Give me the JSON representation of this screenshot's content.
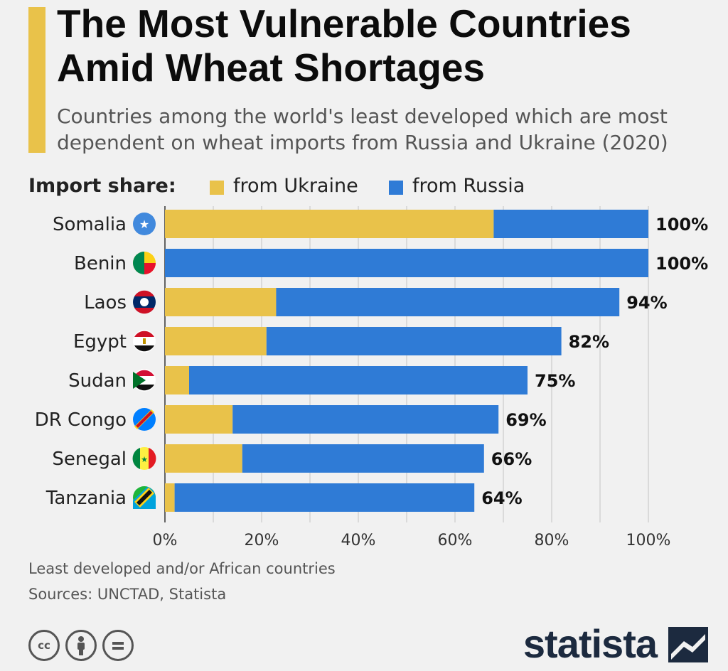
{
  "header": {
    "title": "The Most Vulnerable Countries Amid Wheat Shortages",
    "subtitle": "Countries among the world's least developed which are most dependent on wheat imports from Russia and Ukraine (2020)"
  },
  "legend": {
    "label": "Import share:",
    "items": [
      {
        "name": "from Ukraine",
        "color": "#e9c24a"
      },
      {
        "name": "from Russia",
        "color": "#2f7bd6"
      }
    ]
  },
  "chart_data": {
    "type": "bar",
    "orientation": "horizontal",
    "stacked": true,
    "categories": [
      "Somalia",
      "Benin",
      "Laos",
      "Egypt",
      "Sudan",
      "DR Congo",
      "Senegal",
      "Tanzania"
    ],
    "flags": [
      "somalia-flag-icon",
      "benin-flag-icon",
      "laos-flag-icon",
      "egypt-flag-icon",
      "sudan-flag-icon",
      "dr-congo-flag-icon",
      "senegal-flag-icon",
      "tanzania-flag-icon"
    ],
    "series": [
      {
        "name": "from Ukraine",
        "color": "#e9c24a",
        "values": [
          68,
          0,
          23,
          21,
          5,
          14,
          16,
          2
        ]
      },
      {
        "name": "from Russia",
        "color": "#2f7bd6",
        "values": [
          32,
          100,
          71,
          61,
          70,
          55,
          50,
          62
        ]
      }
    ],
    "totals_labels": [
      "100%",
      "100%",
      "94%",
      "82%",
      "75%",
      "69%",
      "66%",
      "64%"
    ],
    "xlim": [
      0,
      100
    ],
    "xticks": [
      0,
      20,
      40,
      60,
      80,
      100
    ],
    "xtick_labels": [
      "0%",
      "20%",
      "40%",
      "60%",
      "80%",
      "100%"
    ],
    "grid": true,
    "legend_position": "top"
  },
  "footer": {
    "note": "Least developed and/or African countries",
    "sources": "Sources: UNCTAD, Statista",
    "license_icons": [
      "cc-icon",
      "by-icon",
      "nd-icon"
    ],
    "logo_text": "statista"
  }
}
